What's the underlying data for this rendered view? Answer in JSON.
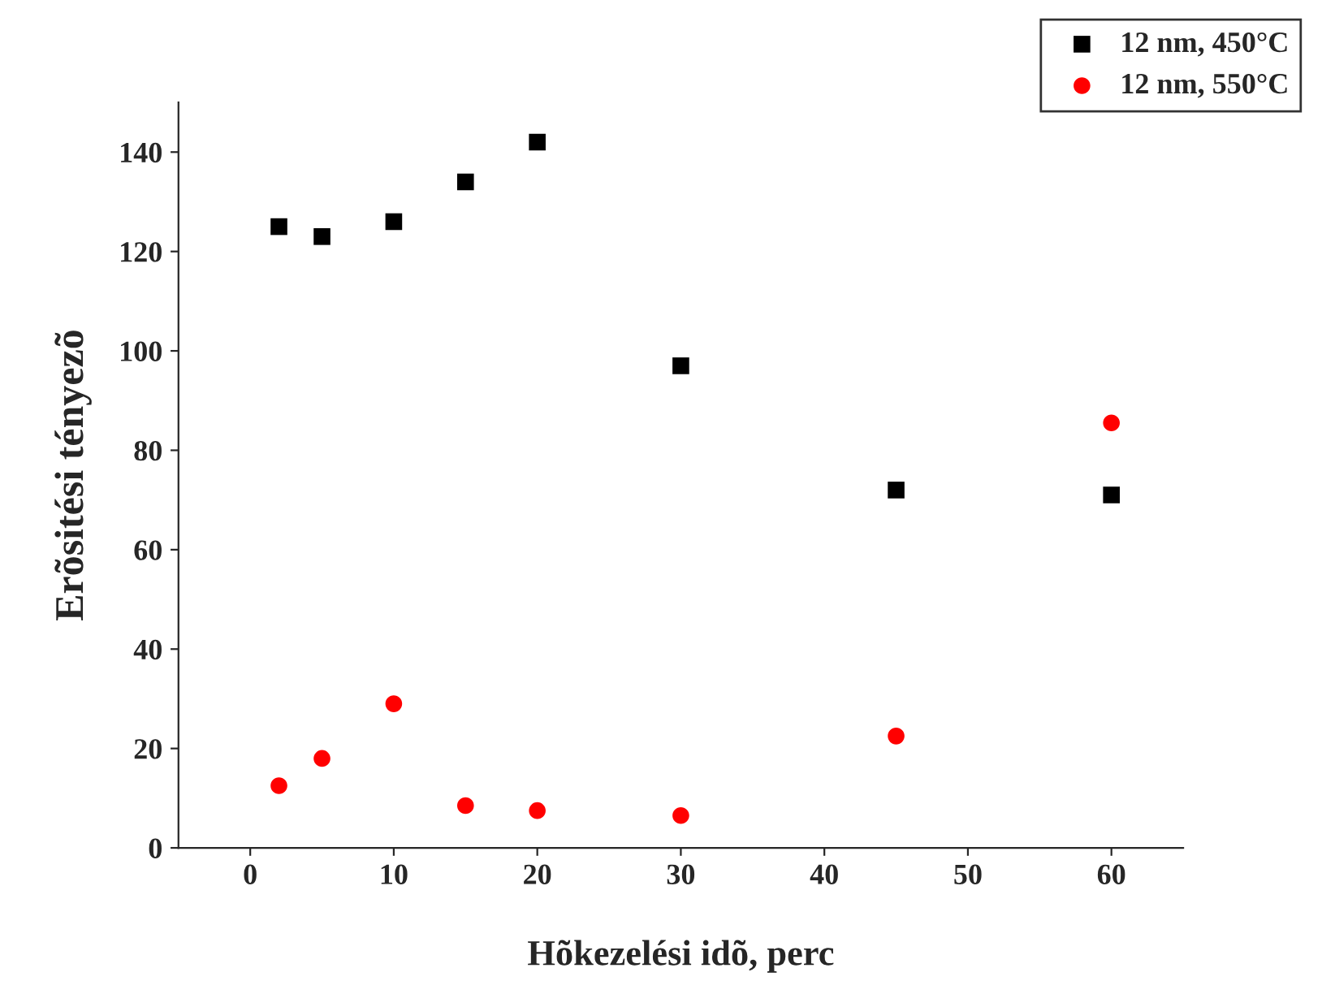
{
  "chart_data": {
    "type": "scatter",
    "xlabel": "Hõkezelési idõ, perc",
    "ylabel": "Erõsitési tényezõ",
    "x": [
      2,
      5,
      10,
      15,
      20,
      30,
      45,
      60
    ],
    "series": [
      {
        "name": "12 nm, 450°C",
        "color": "#000000",
        "marker": "square",
        "values": [
          125,
          123,
          126,
          134,
          142,
          97,
          72,
          71
        ]
      },
      {
        "name": "12 nm, 550°C",
        "color": "#ff0000",
        "marker": "circle",
        "values": [
          12.5,
          18,
          29,
          8.5,
          7.5,
          6.5,
          22.5,
          85.5
        ]
      }
    ],
    "xlim": [
      -5,
      65
    ],
    "xticks": [
      0,
      10,
      20,
      30,
      40,
      50,
      60
    ],
    "ylim": [
      0,
      150
    ],
    "yticks": [
      0,
      20,
      40,
      60,
      80,
      100,
      120,
      140
    ],
    "grid": false,
    "legend": "top right"
  }
}
